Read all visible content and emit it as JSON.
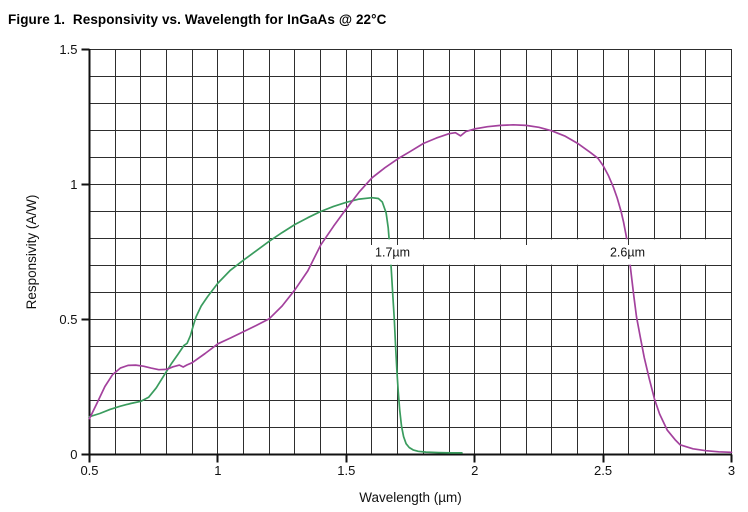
{
  "figure_title": "Figure 1.  Responsivity vs. Wavelength for InGaAs @ 22°C",
  "chart_data": {
    "type": "line",
    "title": "Figure 1.  Responsivity vs. Wavelength for InGaAs @ 22°C",
    "xlabel": "Wavelength (µm)",
    "ylabel": "Responsivity (A/W)",
    "xlim": [
      0.5,
      3
    ],
    "ylim": [
      0,
      1.5
    ],
    "grid": true,
    "minor_grid_step_x": 0.1,
    "minor_grid_step_y": 0.1,
    "legend": "none",
    "x_ticks": {
      "values": [
        0.5,
        1,
        1.5,
        2,
        2.5,
        3
      ],
      "labels": [
        "0.5",
        "1",
        "1.5",
        "2",
        "2.5",
        "3"
      ]
    },
    "y_ticks": {
      "values": [
        0,
        0.5,
        1,
        1.5
      ],
      "labels": [
        "0",
        "0.5",
        "1",
        "1.5"
      ]
    },
    "colors": {
      "green_curve": "#3a9c5e",
      "magenta_curve": "#a3419d",
      "grid": "#2e2e2e",
      "axis": "#111111",
      "text": "#111111",
      "background": "#ffffff"
    },
    "annotation_band": {
      "y_from": 0.7,
      "y_to": 0.8,
      "x_from": 1.43,
      "x_to": 3.0,
      "tick_xs": [
        1.6,
        1.7,
        2.2,
        2.6
      ]
    },
    "annotations": [
      {
        "text": "1.7µm",
        "x": 1.68,
        "y": 0.75
      },
      {
        "text": "2.6µm",
        "x": 2.595,
        "y": 0.75
      }
    ],
    "series": [
      {
        "name": "green-curve",
        "color_key": "green_curve",
        "points": [
          [
            0.5,
            0.14
          ],
          [
            0.54,
            0.152
          ],
          [
            0.58,
            0.167
          ],
          [
            0.62,
            0.179
          ],
          [
            0.66,
            0.189
          ],
          [
            0.7,
            0.197
          ],
          [
            0.73,
            0.212
          ],
          [
            0.76,
            0.247
          ],
          [
            0.79,
            0.293
          ],
          [
            0.82,
            0.338
          ],
          [
            0.845,
            0.372
          ],
          [
            0.868,
            0.404
          ],
          [
            0.88,
            0.412
          ],
          [
            0.893,
            0.44
          ],
          [
            0.905,
            0.48
          ],
          [
            0.915,
            0.51
          ],
          [
            0.935,
            0.55
          ],
          [
            0.96,
            0.585
          ],
          [
            1.0,
            0.635
          ],
          [
            1.047,
            0.681
          ],
          [
            1.1,
            0.72
          ],
          [
            1.15,
            0.755
          ],
          [
            1.2,
            0.79
          ],
          [
            1.25,
            0.822
          ],
          [
            1.3,
            0.852
          ],
          [
            1.35,
            0.877
          ],
          [
            1.4,
            0.9
          ],
          [
            1.45,
            0.919
          ],
          [
            1.5,
            0.934
          ],
          [
            1.55,
            0.946
          ],
          [
            1.6,
            0.951
          ],
          [
            1.625,
            0.948
          ],
          [
            1.64,
            0.935
          ],
          [
            1.655,
            0.895
          ],
          [
            1.663,
            0.84
          ],
          [
            1.669,
            0.77
          ],
          [
            1.675,
            0.69
          ],
          [
            1.681,
            0.59
          ],
          [
            1.687,
            0.5
          ],
          [
            1.692,
            0.4
          ],
          [
            1.697,
            0.31
          ],
          [
            1.702,
            0.235
          ],
          [
            1.708,
            0.165
          ],
          [
            1.715,
            0.105
          ],
          [
            1.723,
            0.066
          ],
          [
            1.733,
            0.04
          ],
          [
            1.745,
            0.026
          ],
          [
            1.76,
            0.017
          ],
          [
            1.78,
            0.012
          ],
          [
            1.81,
            0.009
          ],
          [
            1.86,
            0.007
          ],
          [
            1.91,
            0.006
          ],
          [
            1.95,
            0.006
          ]
        ]
      },
      {
        "name": "magenta-curve",
        "color_key": "magenta_curve",
        "points": [
          [
            0.5,
            0.133
          ],
          [
            0.53,
            0.192
          ],
          [
            0.56,
            0.252
          ],
          [
            0.59,
            0.296
          ],
          [
            0.62,
            0.32
          ],
          [
            0.65,
            0.33
          ],
          [
            0.68,
            0.331
          ],
          [
            0.71,
            0.327
          ],
          [
            0.74,
            0.32
          ],
          [
            0.77,
            0.314
          ],
          [
            0.8,
            0.315
          ],
          [
            0.825,
            0.325
          ],
          [
            0.85,
            0.331
          ],
          [
            0.865,
            0.324
          ],
          [
            0.88,
            0.332
          ],
          [
            0.9,
            0.34
          ],
          [
            0.95,
            0.374
          ],
          [
            1.0,
            0.41
          ],
          [
            1.05,
            0.432
          ],
          [
            1.1,
            0.455
          ],
          [
            1.15,
            0.478
          ],
          [
            1.2,
            0.503
          ],
          [
            1.25,
            0.55
          ],
          [
            1.3,
            0.61
          ],
          [
            1.35,
            0.68
          ],
          [
            1.4,
            0.775
          ],
          [
            1.45,
            0.845
          ],
          [
            1.5,
            0.91
          ],
          [
            1.55,
            0.972
          ],
          [
            1.6,
            1.025
          ],
          [
            1.65,
            1.062
          ],
          [
            1.7,
            1.095
          ],
          [
            1.75,
            1.123
          ],
          [
            1.8,
            1.152
          ],
          [
            1.85,
            1.172
          ],
          [
            1.9,
            1.188
          ],
          [
            1.925,
            1.192
          ],
          [
            1.945,
            1.18
          ],
          [
            1.965,
            1.196
          ],
          [
            2.0,
            1.206
          ],
          [
            2.05,
            1.214
          ],
          [
            2.1,
            1.219
          ],
          [
            2.15,
            1.221
          ],
          [
            2.2,
            1.219
          ],
          [
            2.25,
            1.212
          ],
          [
            2.3,
            1.199
          ],
          [
            2.35,
            1.18
          ],
          [
            2.4,
            1.153
          ],
          [
            2.45,
            1.119
          ],
          [
            2.48,
            1.097
          ],
          [
            2.5,
            1.07
          ],
          [
            2.52,
            1.035
          ],
          [
            2.54,
            0.99
          ],
          [
            2.555,
            0.95
          ],
          [
            2.57,
            0.9
          ],
          [
            2.58,
            0.86
          ],
          [
            2.59,
            0.81
          ],
          [
            2.6,
            0.745
          ],
          [
            2.61,
            0.665
          ],
          [
            2.62,
            0.585
          ],
          [
            2.63,
            0.51
          ],
          [
            2.645,
            0.435
          ],
          [
            2.66,
            0.36
          ],
          [
            2.68,
            0.28
          ],
          [
            2.7,
            0.205
          ],
          [
            2.72,
            0.15
          ],
          [
            2.75,
            0.09
          ],
          [
            2.78,
            0.055
          ],
          [
            2.8,
            0.036
          ],
          [
            2.85,
            0.021
          ],
          [
            2.9,
            0.014
          ],
          [
            2.95,
            0.01
          ],
          [
            3.0,
            0.008
          ]
        ]
      }
    ]
  }
}
